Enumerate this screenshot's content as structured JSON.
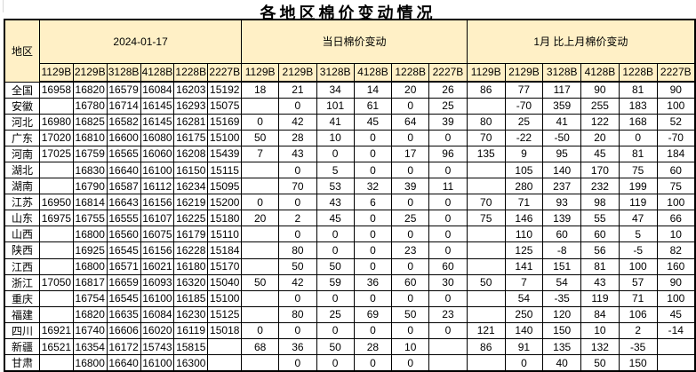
{
  "title": "各地区棉价变动情况",
  "colors": {
    "header_bg": "#FFF0C6",
    "positive_text": "#FF0000",
    "negative_text": "#0070C0",
    "price_text": "#000000",
    "border": "#000000"
  },
  "table": {
    "region_header": "地区",
    "groups": [
      {
        "label": "2024-01-17",
        "columns": [
          "1129B",
          "2129B",
          "3128B",
          "4128B",
          "1228B",
          "2227B"
        ]
      },
      {
        "label": "当日棉价变动",
        "columns": [
          "1129B",
          "2129B",
          "3128B",
          "4128B",
          "1228B",
          "2227B"
        ]
      },
      {
        "label": "1月 比上月棉价变动",
        "columns": [
          "1129B",
          "2129B",
          "3128B",
          "4128B",
          "1228B",
          "2227B"
        ]
      }
    ],
    "rows": [
      {
        "region": "全国",
        "prices": [
          16958,
          16820,
          16579,
          16084,
          16203,
          15192
        ],
        "daily": [
          18,
          21,
          34,
          14,
          20,
          26
        ],
        "monthly": [
          86,
          77,
          117,
          90,
          81,
          90
        ]
      },
      {
        "region": "安徽",
        "prices": [
          "",
          16780,
          16714,
          16145,
          16293,
          15075
        ],
        "daily": [
          "",
          0,
          101,
          61,
          0,
          25
        ],
        "monthly": [
          "",
          -70,
          359,
          255,
          183,
          100
        ]
      },
      {
        "region": "河北",
        "prices": [
          16980,
          16825,
          16582,
          16145,
          16281,
          15169
        ],
        "daily": [
          0,
          42,
          41,
          45,
          64,
          39
        ],
        "monthly": [
          80,
          25,
          41,
          122,
          168,
          52
        ]
      },
      {
        "region": "广东",
        "prices": [
          17020,
          16810,
          16600,
          16080,
          16175,
          15100
        ],
        "daily": [
          50,
          28,
          10,
          0,
          0,
          0
        ],
        "monthly": [
          70,
          -22,
          -50,
          20,
          0,
          -70
        ]
      },
      {
        "region": "河南",
        "prices": [
          17025,
          16759,
          16565,
          16060,
          16208,
          15439
        ],
        "daily": [
          7,
          43,
          0,
          0,
          17,
          96
        ],
        "monthly": [
          135,
          9,
          95,
          45,
          81,
          184
        ]
      },
      {
        "region": "湖北",
        "prices": [
          "",
          16830,
          16640,
          16100,
          16150,
          15115
        ],
        "daily": [
          "",
          0,
          5,
          0,
          0,
          0
        ],
        "monthly": [
          "",
          105,
          140,
          170,
          75,
          60
        ]
      },
      {
        "region": "湖南",
        "prices": [
          "",
          16790,
          16587,
          16112,
          16234,
          15095
        ],
        "daily": [
          "",
          70,
          53,
          32,
          39,
          11
        ],
        "monthly": [
          "",
          280,
          237,
          232,
          199,
          75
        ]
      },
      {
        "region": "江苏",
        "prices": [
          16950,
          16814,
          16643,
          16156,
          16219,
          15200
        ],
        "daily": [
          0,
          0,
          43,
          6,
          0,
          0
        ],
        "monthly": [
          70,
          71,
          93,
          98,
          119,
          100
        ]
      },
      {
        "region": "山东",
        "prices": [
          16975,
          16755,
          16555,
          16107,
          16225,
          15180
        ],
        "daily": [
          20,
          2,
          45,
          0,
          25,
          0
        ],
        "monthly": [
          75,
          146,
          139,
          55,
          47,
          66
        ]
      },
      {
        "region": "山西",
        "prices": [
          "",
          16800,
          16560,
          16075,
          16179,
          15110
        ],
        "daily": [
          "",
          0,
          0,
          0,
          0,
          0
        ],
        "monthly": [
          "",
          110,
          60,
          60,
          5,
          10
        ]
      },
      {
        "region": "陕西",
        "prices": [
          "",
          16925,
          16545,
          16156,
          16228,
          15184
        ],
        "daily": [
          "",
          80,
          0,
          0,
          23,
          0
        ],
        "monthly": [
          "",
          125,
          -8,
          56,
          -5,
          82
        ]
      },
      {
        "region": "江西",
        "prices": [
          "",
          16800,
          16571,
          16021,
          16180,
          15170
        ],
        "daily": [
          "",
          50,
          50,
          0,
          0,
          60
        ],
        "monthly": [
          "",
          141,
          151,
          81,
          100,
          160
        ]
      },
      {
        "region": "浙江",
        "prices": [
          17050,
          16817,
          16659,
          16093,
          16320,
          15040
        ],
        "daily": [
          50,
          42,
          59,
          36,
          60,
          30
        ],
        "monthly": [
          50,
          7,
          54,
          43,
          57,
          90
        ]
      },
      {
        "region": "重庆",
        "prices": [
          "",
          16754,
          16545,
          16100,
          16185,
          15100
        ],
        "daily": [
          "",
          0,
          0,
          0,
          0,
          0
        ],
        "monthly": [
          "",
          54,
          -35,
          119,
          71,
          100
        ]
      },
      {
        "region": "福建",
        "prices": [
          "",
          16820,
          16635,
          16084,
          16230,
          15125
        ],
        "daily": [
          "",
          80,
          25,
          69,
          50,
          23
        ],
        "monthly": [
          "",
          250,
          120,
          84,
          106,
          45
        ]
      },
      {
        "region": "四川",
        "prices": [
          16921,
          16740,
          16606,
          16020,
          16119,
          15018
        ],
        "daily": [
          0,
          0,
          0,
          0,
          0,
          0
        ],
        "monthly": [
          121,
          140,
          150,
          10,
          2,
          -14
        ]
      },
      {
        "region": "新疆",
        "prices": [
          16521,
          16354,
          16172,
          15743,
          15815,
          ""
        ],
        "daily": [
          68,
          36,
          50,
          28,
          10,
          ""
        ],
        "monthly": [
          86,
          91,
          135,
          132,
          -35,
          ""
        ]
      },
      {
        "region": "甘肃",
        "prices": [
          "",
          16800,
          16640,
          16100,
          16300,
          ""
        ],
        "daily": [
          "",
          0,
          0,
          0,
          0,
          ""
        ],
        "monthly": [
          "",
          0,
          40,
          50,
          150,
          ""
        ]
      }
    ]
  }
}
